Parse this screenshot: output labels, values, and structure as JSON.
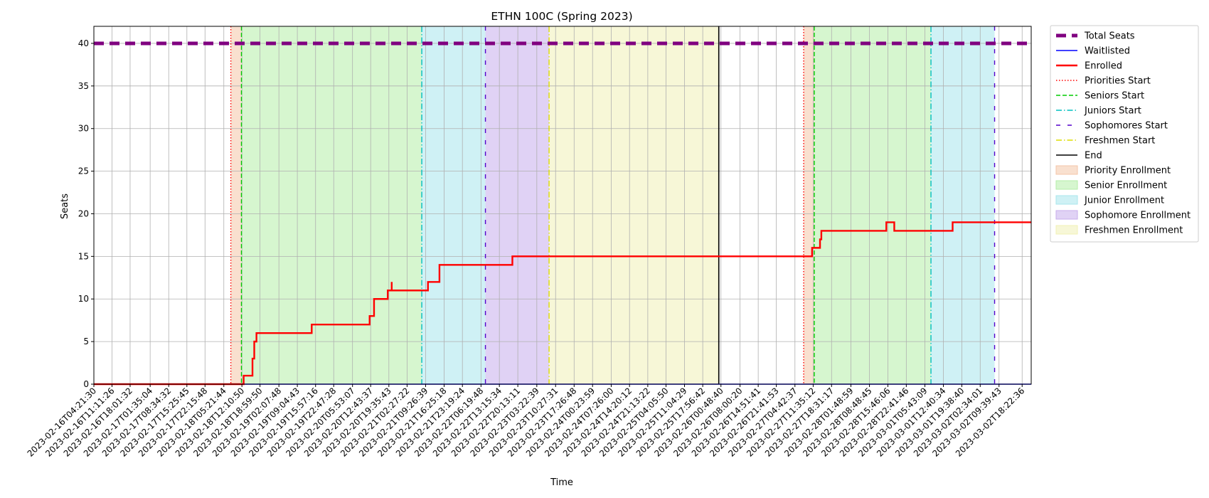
{
  "chart_data": {
    "type": "line",
    "title": "ETHN 100C (Spring 2023)",
    "xlabel": "Time",
    "ylabel": "Seats",
    "ylim": [
      0,
      42
    ],
    "yticks": [
      0,
      5,
      10,
      15,
      20,
      25,
      30,
      35,
      40
    ],
    "xlim": [
      "2023-02-16T04:21:30",
      "2023-03-02T21:48:00"
    ],
    "x_tick_labels": [
      "2023-02-16T04:21:30",
      "2023-02-16T11:11:26",
      "2023-02-16T18:01:32",
      "2023-02-17T01:35:04",
      "2023-02-17T08:34:32",
      "2023-02-17T15:25:45",
      "2023-02-17T22:15:48",
      "2023-02-18T05:21:44",
      "2023-02-18T12:10:50",
      "2023-02-18T18:59:50",
      "2023-02-19T02:07:48",
      "2023-02-19T09:04:43",
      "2023-02-19T15:57:16",
      "2023-02-19T22:47:28",
      "2023-02-20T05:53:07",
      "2023-02-20T12:43:37",
      "2023-02-20T19:35:43",
      "2023-02-21T02:27:22",
      "2023-02-21T09:26:39",
      "2023-02-21T16:25:18",
      "2023-02-21T23:19:24",
      "2023-02-22T06:19:48",
      "2023-02-22T13:15:34",
      "2023-02-22T20:13:11",
      "2023-02-23T03:22:39",
      "2023-02-23T10:27:31",
      "2023-02-23T17:26:48",
      "2023-02-24T00:23:59",
      "2023-02-24T07:26:00",
      "2023-02-24T14:20:12",
      "2023-02-24T21:13:22",
      "2023-02-25T04:05:50",
      "2023-02-25T11:04:29",
      "2023-02-25T17:56:42",
      "2023-02-26T00:48:40",
      "2023-02-26T08:00:20",
      "2023-02-26T14:51:41",
      "2023-02-26T21:41:53",
      "2023-02-27T04:42:37",
      "2023-02-27T11:35:12",
      "2023-02-27T18:31:17",
      "2023-02-28T01:48:59",
      "2023-02-28T08:48:45",
      "2023-02-28T15:46:06",
      "2023-02-28T22:41:46",
      "2023-03-01T05:43:09",
      "2023-03-01T12:40:34",
      "2023-03-01T19:38:40",
      "2023-03-02T02:34:01",
      "2023-03-02T09:39:43",
      "2023-03-02T18:22:36"
    ],
    "grid": true,
    "legend_position": "outside-right",
    "series": [
      {
        "name": "Total Seats",
        "kind": "line",
        "color": "#800080",
        "dash": "dashed",
        "x": [
          "2023-02-16T04:21:30",
          "2023-03-02T21:48:00"
        ],
        "y": [
          40,
          40
        ]
      },
      {
        "name": "Waitlisted",
        "kind": "line",
        "color": "#0000ff",
        "dash": "solid",
        "x": [
          "2023-02-16T04:21:30",
          "2023-03-02T21:48:00"
        ],
        "y": [
          0,
          0
        ]
      },
      {
        "name": "Enrolled",
        "kind": "step",
        "color": "#ff0000",
        "dash": "solid",
        "x": [
          "2023-02-16T04:21:30",
          "2023-02-18T12:50:00",
          "2023-02-18T16:10:00",
          "2023-02-18T16:50:00",
          "2023-02-18T17:40:00",
          "2023-02-18T21:00:00",
          "2023-02-19T14:30:00",
          "2023-02-20T12:20:00",
          "2023-02-20T14:00:00",
          "2023-02-20T19:10:00",
          "2023-02-20T20:10:00",
          "2023-02-21T10:20:00",
          "2023-02-21T14:40:00",
          "2023-02-22T18:10:00",
          "2023-02-27T11:10:00",
          "2023-02-27T14:10:00",
          "2023-02-27T14:40:00",
          "2023-02-28T15:10:00",
          "2023-02-28T18:10:00",
          "2023-03-01T16:10:00",
          "2023-03-02T21:48:00"
        ],
        "y": [
          0,
          1,
          3,
          5,
          6,
          6,
          7,
          8,
          10,
          11,
          11,
          12,
          14,
          15,
          16,
          17,
          18,
          19,
          18,
          19,
          19
        ]
      },
      {
        "name": "Enrolled (spike)",
        "kind": "segment",
        "color": "#ff0000",
        "x": [
          "2023-02-20T20:40:00",
          "2023-02-20T20:40:00"
        ],
        "y": [
          11,
          12
        ]
      }
    ],
    "phases": [
      {
        "name": "Priority Enrollment",
        "color": "#f4c6a8",
        "start": "2023-02-18T08:00:00",
        "end": "2023-02-18T12:00:00"
      },
      {
        "name": "Senior Enrollment",
        "color": "#b5eea8",
        "start": "2023-02-18T12:00:00",
        "end": "2023-02-21T08:00:00"
      },
      {
        "name": "Junior Enrollment",
        "color": "#a8e6ec",
        "start": "2023-02-21T08:00:00",
        "end": "2023-02-22T08:00:00"
      },
      {
        "name": "Sophomore Enrollment",
        "color": "#c7adec",
        "start": "2023-02-22T08:00:00",
        "end": "2023-02-23T08:00:00"
      },
      {
        "name": "Freshmen Enrollment",
        "color": "#f1f1b6",
        "start": "2023-02-23T08:00:00",
        "end": "2023-02-26T00:00:00"
      },
      {
        "name": "Priority Enrollment",
        "color": "#f4c6a8",
        "start": "2023-02-27T08:00:00",
        "end": "2023-02-27T12:00:00"
      },
      {
        "name": "Senior Enrollment",
        "color": "#b5eea8",
        "start": "2023-02-27T12:00:00",
        "end": "2023-03-01T08:00:00"
      },
      {
        "name": "Junior Enrollment",
        "color": "#a8e6ec",
        "start": "2023-03-01T08:00:00",
        "end": "2023-03-02T08:00:00"
      }
    ],
    "vlines": [
      {
        "name": "Priorities Start",
        "color": "#ff0000",
        "style": "dotted",
        "x": "2023-02-18T08:00:00"
      },
      {
        "name": "Seniors Start",
        "color": "#00cc00",
        "style": "dashed",
        "x": "2023-02-18T12:00:00"
      },
      {
        "name": "Juniors Start",
        "color": "#00bfbf",
        "style": "dashdot",
        "x": "2023-02-21T08:00:00"
      },
      {
        "name": "Sophomores Start",
        "color": "#5500cc",
        "style": "loosedash",
        "x": "2023-02-22T08:00:00"
      },
      {
        "name": "Freshmen Start",
        "color": "#dddd00",
        "style": "dashdot",
        "x": "2023-02-23T08:00:00"
      },
      {
        "name": "End",
        "color": "#000000",
        "style": "solid",
        "x": "2023-02-26T00:00:00"
      },
      {
        "name": "Priorities Start",
        "color": "#ff0000",
        "style": "dotted",
        "x": "2023-02-27T08:00:00"
      },
      {
        "name": "Seniors Start",
        "color": "#00cc00",
        "style": "dashed",
        "x": "2023-02-27T12:00:00"
      },
      {
        "name": "Juniors Start",
        "color": "#00bfbf",
        "style": "dashdot",
        "x": "2023-03-01T08:00:00"
      },
      {
        "name": "Sophomores Start",
        "color": "#5500cc",
        "style": "loosedash",
        "x": "2023-03-02T08:00:00"
      }
    ],
    "legend": [
      {
        "label": "Total Seats",
        "kind": "line",
        "color": "#800080",
        "style": "thickdash"
      },
      {
        "label": "Waitlisted",
        "kind": "line",
        "color": "#0000ff",
        "style": "solid"
      },
      {
        "label": "Enrolled",
        "kind": "line",
        "color": "#ff0000",
        "style": "thick"
      },
      {
        "label": "Priorities Start",
        "kind": "line",
        "color": "#ff0000",
        "style": "dotted"
      },
      {
        "label": "Seniors Start",
        "kind": "line",
        "color": "#00cc00",
        "style": "dashed"
      },
      {
        "label": "Juniors Start",
        "kind": "line",
        "color": "#00bfbf",
        "style": "dashdot"
      },
      {
        "label": "Sophomores Start",
        "kind": "line",
        "color": "#5500cc",
        "style": "loosedash"
      },
      {
        "label": "Freshmen Start",
        "kind": "line",
        "color": "#dddd00",
        "style": "dashdot"
      },
      {
        "label": "End",
        "kind": "line",
        "color": "#000000",
        "style": "solid"
      },
      {
        "label": "Priority Enrollment",
        "kind": "patch",
        "color": "#f4c6a8"
      },
      {
        "label": "Senior Enrollment",
        "kind": "patch",
        "color": "#b5eea8"
      },
      {
        "label": "Junior Enrollment",
        "kind": "patch",
        "color": "#a8e6ec"
      },
      {
        "label": "Sophomore Enrollment",
        "kind": "patch",
        "color": "#c7adec"
      },
      {
        "label": "Freshmen Enrollment",
        "kind": "patch",
        "color": "#f1f1b6"
      }
    ]
  }
}
